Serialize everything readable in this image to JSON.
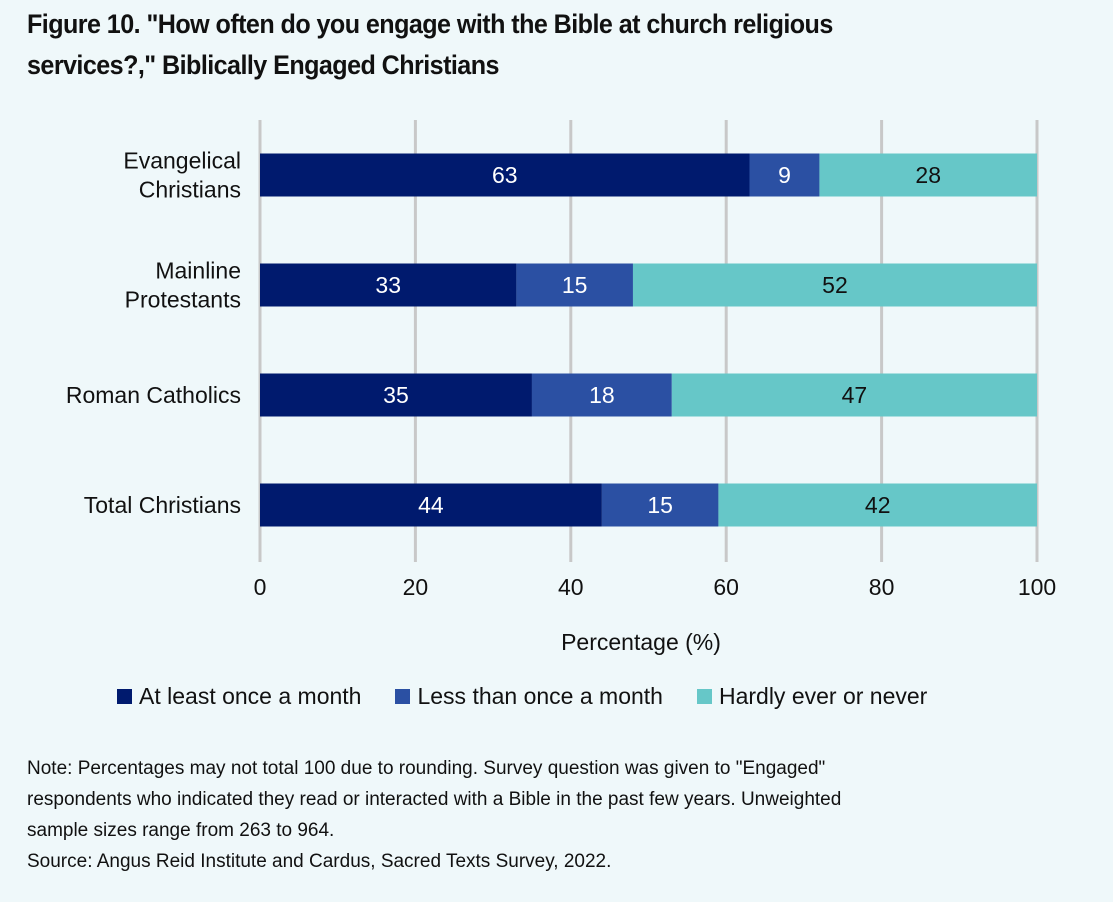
{
  "title_line1": "Figure 10. \"How often do you engage with the Bible at church religious",
  "title_line2": "services?,\" Biblically Engaged Christians",
  "colors": {
    "at_least_monthly": "#001a6e",
    "less_than_monthly": "#2b50a3",
    "hardly_ever": "#66c7c8",
    "gridline": "#c8c8c8",
    "background": "#eff8fa"
  },
  "chart_data": {
    "type": "bar",
    "orientation": "horizontal",
    "stacked": true,
    "title": "Figure 10. \"How often do you engage with the Bible at church religious services?,\" Biblically Engaged Christians",
    "categories": [
      [
        "Evangelical",
        "Christians"
      ],
      [
        "Mainline",
        "Protestants"
      ],
      [
        "Roman Catholics"
      ],
      [
        "Total Christians"
      ]
    ],
    "series": [
      {
        "name": "At least once a month",
        "values": [
          63,
          33,
          35,
          44
        ],
        "label_color": "#ffffff"
      },
      {
        "name": "Less than once a month",
        "values": [
          9,
          15,
          18,
          15
        ],
        "label_color": "#ffffff"
      },
      {
        "name": "Hardly ever or never",
        "values": [
          28,
          52,
          47,
          42
        ],
        "label_color": "#111111"
      }
    ],
    "xlabel": "Percentage (%)",
    "ylabel": "",
    "xlim": [
      0,
      100
    ],
    "xticks": [
      0,
      20,
      40,
      60,
      80,
      100
    ],
    "grid": true,
    "legend_position": "bottom"
  },
  "notes": [
    "Note: Percentages may not total 100 due to rounding. Survey question was given to \"Engaged\"",
    "respondents who indicated they read or interacted with a Bible in the past few years. Unweighted",
    "sample sizes range from 263 to 964.",
    "Source: Angus Reid Institute and Cardus, Sacred Texts Survey, 2022."
  ]
}
